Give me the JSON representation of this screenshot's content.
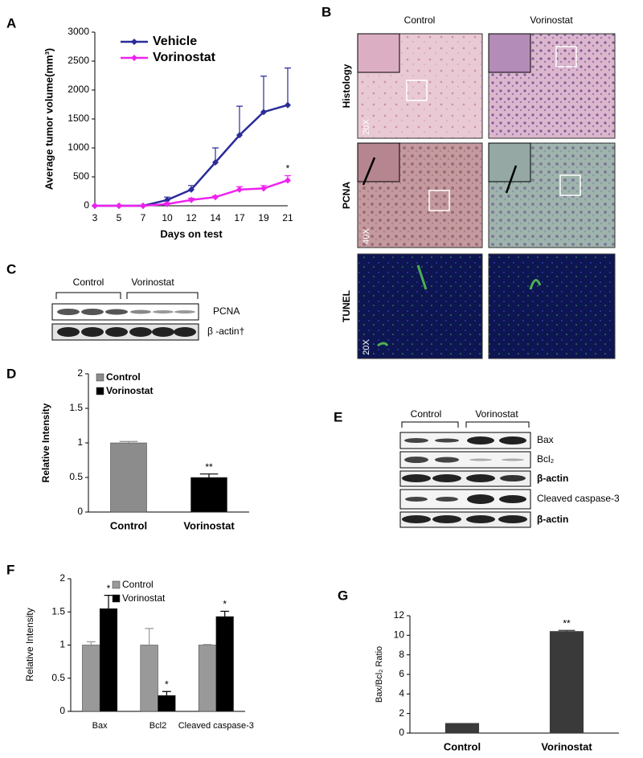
{
  "panel_letters": [
    "A",
    "B",
    "C",
    "D",
    "E",
    "F",
    "G"
  ],
  "histology": {
    "columns": [
      "Control",
      "Vorinostat"
    ],
    "rows": [
      "Histology",
      "PCNA",
      "TUNEL"
    ],
    "magnifications": [
      "20X",
      "40X",
      "20X"
    ]
  },
  "blot_c": {
    "groups": [
      "Control",
      "Vorinostat"
    ],
    "bands": [
      "PCNA",
      "β -actin†"
    ]
  },
  "blot_e": {
    "groups": [
      "Control",
      "Vorinostat"
    ],
    "bands": [
      "Bax",
      "Bcl₂",
      "β-actin",
      "Cleaved caspase-3",
      "β-actin"
    ]
  },
  "chart_data": [
    {
      "type": "line",
      "y_label": "Average tumor volume(mm³)",
      "x_label": "Days on test",
      "categories": [
        "3",
        "5",
        "7",
        "10",
        "12",
        "14",
        "17",
        "19",
        "21"
      ],
      "series": [
        {
          "name": "Vehicle",
          "color": "#2b2b9a",
          "values": [
            0,
            0,
            0,
            100,
            280,
            750,
            1220,
            1620,
            1740
          ],
          "errors": [
            0,
            0,
            0,
            50,
            70,
            250,
            500,
            620,
            640
          ]
        },
        {
          "name": "Vorinostat",
          "color": "#ee22ee",
          "values": [
            0,
            0,
            0,
            30,
            100,
            150,
            280,
            300,
            440
          ],
          "errors": [
            0,
            0,
            0,
            20,
            30,
            20,
            50,
            50,
            80
          ],
          "significance": [
            null,
            null,
            null,
            null,
            null,
            null,
            null,
            null,
            "*"
          ]
        }
      ],
      "ylim": [
        0,
        3000
      ],
      "yticks": [
        0,
        500,
        1000,
        1500,
        2000,
        2500,
        3000
      ],
      "grid": false
    },
    {
      "type": "bar",
      "y_label": "Relative Intensity",
      "categories": [
        "Control",
        "Vorinostat"
      ],
      "series": [
        {
          "name": "Control",
          "color": "#8c8c8c",
          "values": [
            1.0,
            null
          ],
          "errors": [
            0.02,
            null
          ]
        },
        {
          "name": "Vorinostat",
          "color": "#000000",
          "values": [
            null,
            0.5
          ],
          "errors": [
            null,
            0.05
          ],
          "significance": [
            null,
            "**"
          ]
        }
      ],
      "ylim": [
        0,
        2
      ],
      "yticks": [
        0,
        0.5,
        1,
        1.5,
        2
      ],
      "grid": false
    },
    {
      "type": "bar",
      "y_label": "Relative Intensity",
      "categories": [
        "Bax",
        "Bcl2",
        "Cleaved caspase-3"
      ],
      "series": [
        {
          "name": "Control",
          "color": "#999999",
          "values": [
            1.0,
            1.0,
            1.0
          ],
          "errors": [
            0.05,
            0.25,
            0.01
          ]
        },
        {
          "name": "Vorinostat",
          "color": "#000000",
          "values": [
            1.55,
            0.24,
            1.43
          ],
          "errors": [
            0.2,
            0.06,
            0.08
          ],
          "significance": [
            "*",
            "*",
            "*"
          ]
        }
      ],
      "ylim": [
        0,
        2
      ],
      "yticks": [
        0,
        0.5,
        1,
        1.5,
        2
      ],
      "grid": false
    },
    {
      "type": "bar",
      "y_label": "Bax/Bcl₂ Ratio",
      "categories": [
        "Control",
        "Vorinostat"
      ],
      "values": [
        1.0,
        10.4
      ],
      "errors": [
        0,
        0.1
      ],
      "significance": [
        null,
        "**"
      ],
      "color": "#3a3a3a",
      "ylim": [
        0,
        12
      ],
      "yticks": [
        0,
        2,
        4,
        6,
        8,
        10,
        12
      ],
      "grid": false
    }
  ]
}
